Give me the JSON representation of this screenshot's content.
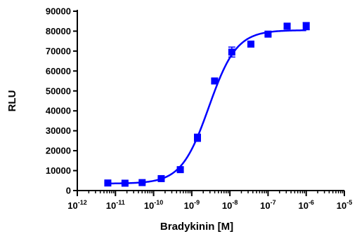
{
  "chart_data": {
    "type": "scatter",
    "xlabel": "Bradykinin [M]",
    "ylabel": "RLU",
    "x_scale": "log",
    "xlim_log10": [
      -12,
      -5
    ],
    "ylim": [
      0,
      90000
    ],
    "y_ticks": [
      0,
      10000,
      20000,
      30000,
      40000,
      50000,
      60000,
      70000,
      80000,
      90000
    ],
    "y_tick_labels": [
      "0",
      "10000",
      "20000",
      "30000",
      "40000",
      "50000",
      "60000",
      "70000",
      "80000",
      "90000"
    ],
    "x_tick_exponents": [
      -12,
      -11,
      -10,
      -9,
      -8,
      -7,
      -6,
      -5
    ],
    "x_tick_base": "10",
    "x_tick_labels": [
      "10-12",
      "10-11",
      "10-10",
      "10-9",
      "10-8",
      "10-7",
      "10-6",
      "10-5"
    ],
    "grid": false,
    "legend": "none",
    "series_color": "#0000ff",
    "points": [
      {
        "log10x": -11.2,
        "y": 3800,
        "err": 400
      },
      {
        "log10x": -10.75,
        "y": 3700,
        "err": 400
      },
      {
        "log10x": -10.3,
        "y": 4000,
        "err": 400
      },
      {
        "log10x": -9.8,
        "y": 6000,
        "err": 500
      },
      {
        "log10x": -9.3,
        "y": 10500,
        "err": 800
      },
      {
        "log10x": -8.85,
        "y": 26500,
        "err": 1800
      },
      {
        "log10x": -8.4,
        "y": 55000,
        "err": 1000
      },
      {
        "log10x": -7.95,
        "y": 69500,
        "err": 2500
      },
      {
        "log10x": -7.45,
        "y": 73500,
        "err": 800
      },
      {
        "log10x": -7.0,
        "y": 78500,
        "err": 800
      },
      {
        "log10x": -6.5,
        "y": 82500,
        "err": 1000
      },
      {
        "log10x": -6.0,
        "y": 82500,
        "err": 1800
      }
    ],
    "fit": {
      "bottom": 3500,
      "top": 80500,
      "log_ec50": -8.55,
      "hill": 1.2
    }
  }
}
